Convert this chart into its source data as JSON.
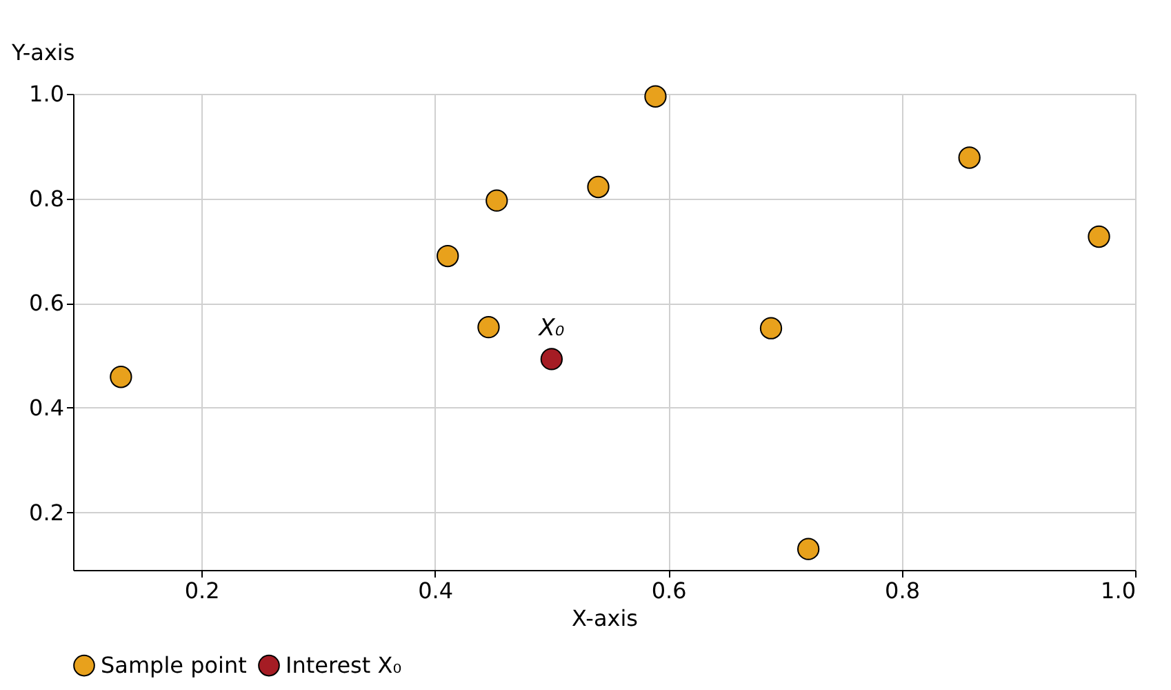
{
  "chart_data": {
    "type": "scatter",
    "xlabel": "X-axis",
    "ylabel": "Y-axis",
    "series": [
      {
        "name": "Sample point",
        "color": "#e8a11c",
        "x": [
          0.131,
          0.411,
          0.453,
          0.446,
          0.54,
          0.589,
          0.688,
          0.72,
          0.858,
          0.969
        ],
        "values": [
          0.459,
          0.69,
          0.796,
          0.554,
          0.822,
          0.995,
          0.552,
          0.13,
          0.878,
          0.727
        ]
      },
      {
        "name": "Interest X₀",
        "color": "#a51c24",
        "x": [
          0.5
        ],
        "values": [
          0.493
        ]
      }
    ],
    "annotations": [
      {
        "text": "X₀",
        "x": 0.5,
        "y": 0.493
      }
    ],
    "xlim": [
      0.09,
      1.0
    ],
    "ylim": [
      0.09,
      1.0
    ],
    "xticks": [
      0.2,
      0.4,
      0.6,
      0.8,
      {
        "value": 1.0,
        "label": "1.0"
      }
    ],
    "yticks": [
      0.2,
      0.4,
      0.6,
      0.8,
      {
        "value": 1.0,
        "label": "1.0"
      }
    ],
    "grid": true,
    "legend": "bottom",
    "marker": "circle"
  }
}
